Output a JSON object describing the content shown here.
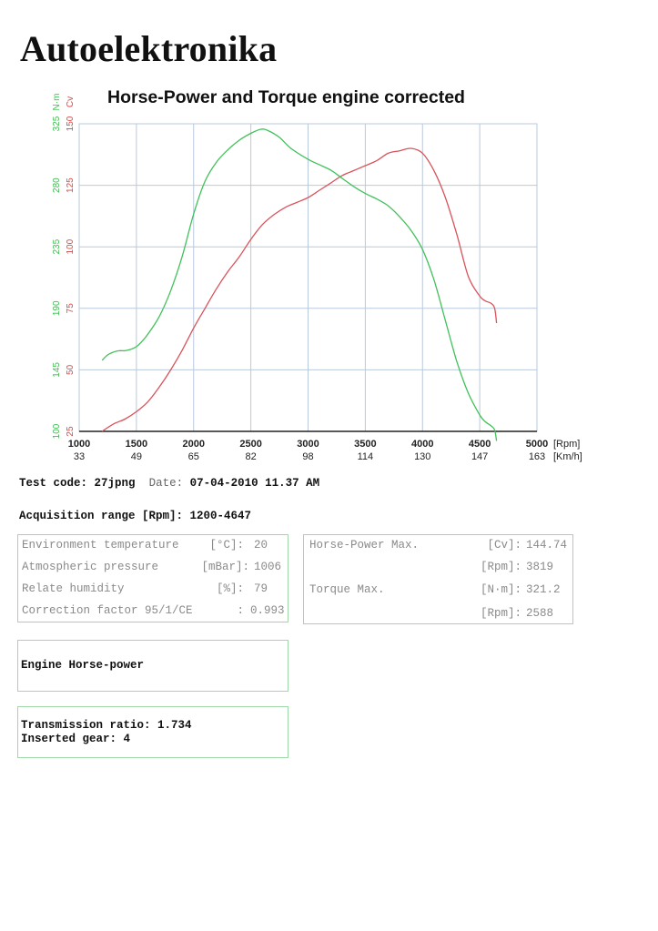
{
  "brand": "Autoelektronika",
  "chart_data": {
    "type": "line",
    "title": "Horse-Power and Torque engine corrected",
    "x_axis": {
      "rpm_ticks": [
        "1000",
        "1500",
        "2000",
        "2500",
        "3000",
        "3500",
        "4000",
        "4500",
        "5000"
      ],
      "kmh_ticks": [
        "33",
        "49",
        "65",
        "82",
        "98",
        "114",
        "130",
        "147",
        "163"
      ],
      "rpm_unit": "[Rpm]",
      "kmh_unit": "[Km/h]",
      "range": [
        1000,
        5000
      ]
    },
    "y_axis_cv": {
      "label": "Cv",
      "ticks": [
        "25",
        "50",
        "75",
        "100",
        "125",
        "150"
      ],
      "range": [
        25,
        150
      ],
      "color": "#d44a4a"
    },
    "y_axis_nm": {
      "label": "N·m",
      "ticks": [
        "100",
        "145",
        "190",
        "235",
        "280",
        "325"
      ],
      "range": [
        100,
        325
      ],
      "color": "#3cbf4f"
    },
    "grid": true,
    "series": [
      {
        "name": "Horse-Power",
        "axis": "cv",
        "color": "#d9535b",
        "x": [
          1200,
          1300,
          1400,
          1500,
          1600,
          1700,
          1800,
          1900,
          2000,
          2100,
          2200,
          2300,
          2400,
          2500,
          2600,
          2700,
          2800,
          2900,
          3000,
          3100,
          3200,
          3300,
          3400,
          3500,
          3600,
          3700,
          3800,
          3900,
          4000,
          4100,
          4200,
          4300,
          4400,
          4500,
          4550,
          4600,
          4630,
          4647
        ],
        "values": [
          25,
          28,
          30,
          33,
          37,
          43,
          50,
          58,
          67,
          75,
          83,
          90,
          96,
          103,
          109,
          113,
          116,
          118,
          120,
          123,
          126,
          129,
          131,
          133,
          135,
          138,
          139,
          140,
          138,
          131,
          120,
          105,
          88,
          80,
          78,
          77,
          75,
          69
        ]
      },
      {
        "name": "Torque",
        "axis": "nm",
        "color": "#41c15a",
        "x": [
          1200,
          1250,
          1300,
          1350,
          1400,
          1450,
          1500,
          1550,
          1600,
          1700,
          1800,
          1900,
          2000,
          2100,
          2200,
          2300,
          2400,
          2500,
          2588,
          2650,
          2750,
          2850,
          3000,
          3100,
          3200,
          3300,
          3400,
          3500,
          3600,
          3700,
          3800,
          3900,
          4000,
          4100,
          4200,
          4300,
          4400,
          4500,
          4550,
          4600,
          4630,
          4647
        ],
        "values": [
          152,
          156,
          158,
          159,
          159,
          160,
          162,
          166,
          171,
          184,
          203,
          228,
          259,
          283,
          297,
          306,
          313,
          318,
          321,
          320,
          315,
          307,
          299,
          295,
          291,
          285,
          279,
          274,
          270,
          265,
          257,
          247,
          233,
          211,
          181,
          151,
          128,
          112,
          107,
          104,
          101,
          93
        ]
      }
    ]
  },
  "test_info": {
    "code_label": "Test code:",
    "code_value": "27jpng",
    "date_label": "Date:",
    "date_value": "07-04-2010 11.37 AM",
    "range_label": "Acquisition range [Rpm]:",
    "range_value": "1200-4647"
  },
  "environment": [
    {
      "label": "Environment temperature",
      "unit": "[°C]:",
      "value": "20"
    },
    {
      "label": "Atmospheric pressure",
      "unit": "[mBar]:",
      "value": "1006"
    },
    {
      "label": "Relate humidity",
      "unit": "[%]:",
      "value": "79"
    },
    {
      "label": "Correction factor 95/1/CE",
      "unit": ":",
      "value": "0.993"
    }
  ],
  "maxima": [
    {
      "label": "Horse-Power Max.",
      "unit": "[Cv]:",
      "value": "144.74"
    },
    {
      "label": "",
      "unit": "[Rpm]:",
      "value": "3819"
    },
    {
      "label": "Torque Max.",
      "unit": "[N·m]:",
      "value": "321.2"
    },
    {
      "label": "",
      "unit": "[Rpm]:",
      "value": "2588"
    }
  ],
  "engine_box": {
    "text": "Engine Horse-power"
  },
  "transmission": {
    "ratio_label": "Transmission ratio:",
    "ratio_value": "1.734",
    "gear_label": "Inserted gear:",
    "gear_value": "4"
  }
}
